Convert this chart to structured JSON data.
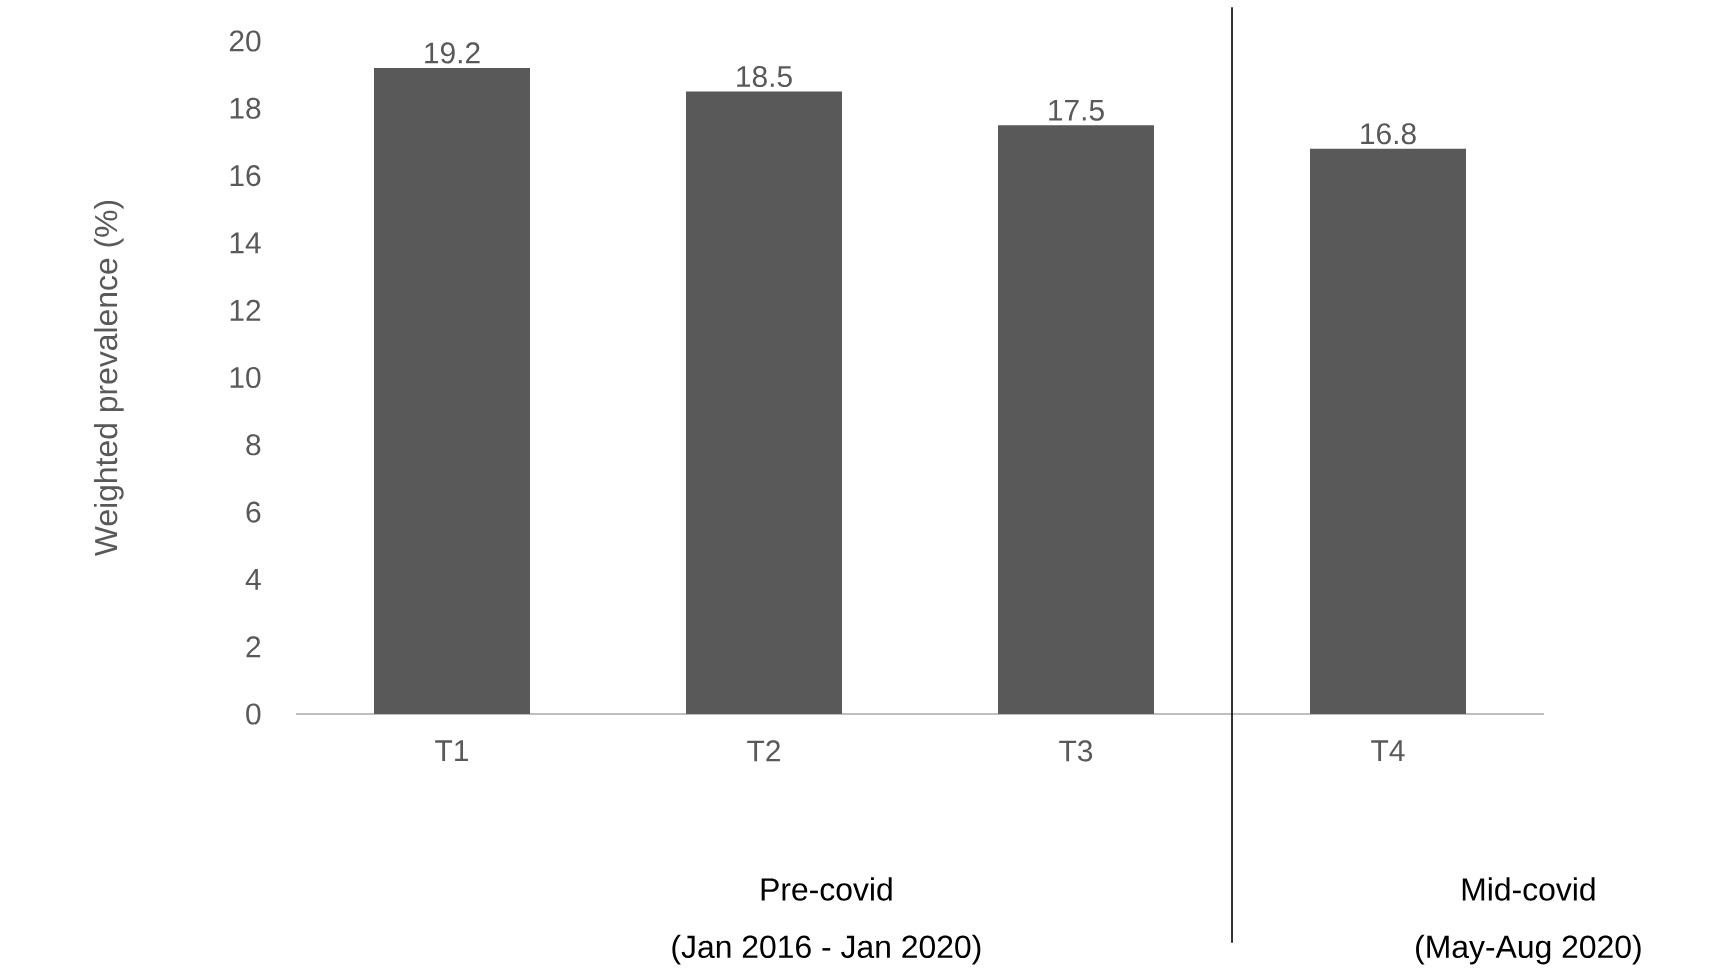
{
  "chart_data": {
    "type": "bar",
    "ylabel": "Weighted prevalence (%)",
    "categories": [
      "T1",
      "T2",
      "T3",
      "T4"
    ],
    "values": [
      19.2,
      18.5,
      17.5,
      16.8
    ],
    "color": "#595959",
    "data_labels": true,
    "grid": false,
    "ylim": [
      0,
      20
    ],
    "yticks": [
      0,
      2,
      4,
      6,
      8,
      10,
      12,
      14,
      16,
      18,
      20
    ],
    "annotations": [
      "Pre-covid",
      "(Jan 2016 - Jan 2020)",
      "Mid-covid",
      "(May-Aug 2020)"
    ]
  }
}
